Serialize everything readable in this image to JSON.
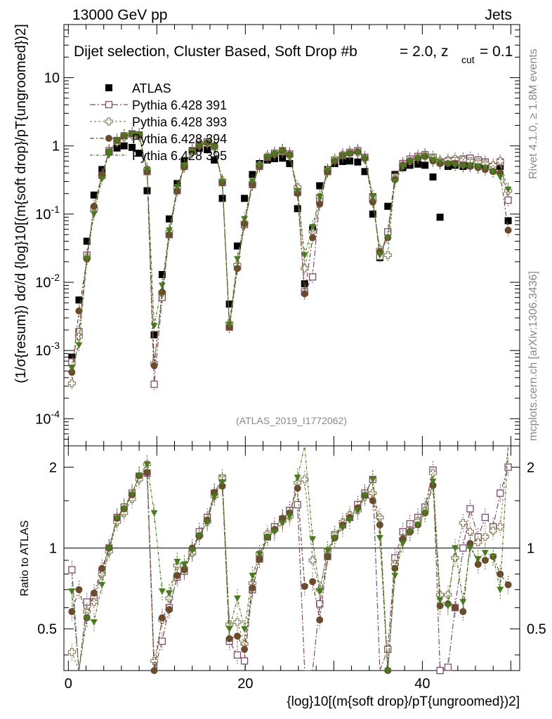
{
  "header": {
    "energy_label": "13000 GeV pp",
    "category_label": "Jets",
    "plot_title": "Dijet selection, Cluster Based, Soft Drop #b",
    "beta_label": "= 2.0, z",
    "zcut_sub": "cut",
    "zcut_value": "= 0.1",
    "analysis_id": "(ATLAS_2019_I1772062)"
  },
  "side_text": {
    "rivet": "Rivet 4.1.0, ≥ 1.8M events",
    "mcplots": "mcplots.cern.ch [arXiv:1306.3436]"
  },
  "axes": {
    "ylabel_main": "(1/σ{resum}) dσ/d {log}10[(m{soft drop}/pT{ungroomed})2]",
    "ylabel_ratio": "Ratio to ATLAS",
    "xlabel": "{log}10[(m{soft drop}/pT{ungroomed})2]",
    "x_ticks": [
      "0",
      "20",
      "40"
    ],
    "y_main_ticks": [
      "10",
      "1",
      "10^-1",
      "10^-2",
      "10^-3",
      "10^-4"
    ],
    "y_ratio_ticks": [
      "2",
      "1",
      "0.5"
    ]
  },
  "legend": [
    {
      "label": "ATLAS",
      "marker": "square-filled",
      "color": "#000000"
    },
    {
      "label": "Pythia 6.428 391",
      "marker": "square-open",
      "color": "#7b4a6b"
    },
    {
      "label": "Pythia 6.428 393",
      "marker": "cross-open",
      "color": "#8c8060"
    },
    {
      "label": "Pythia 6.428 394",
      "marker": "circle-filled",
      "color": "#6b4a2e"
    },
    {
      "label": "Pythia 6.428 395",
      "marker": "triangle-down-filled",
      "color": "#4a7a1e"
    }
  ],
  "chart_data": {
    "type": "scatter",
    "xlim": [
      -0.5,
      51
    ],
    "ylim_main": [
      4e-05,
      60
    ],
    "ylim_ratio": [
      0.35,
      2.4
    ],
    "main_y_scale": "log",
    "ratio_y_scale": "log",
    "x": [
      0.4,
      1.2,
      2.1,
      2.9,
      3.8,
      4.6,
      5.5,
      6.3,
      7.2,
      8.0,
      8.9,
      9.7,
      10.6,
      11.4,
      12.3,
      13.1,
      14.0,
      14.8,
      15.7,
      16.5,
      17.4,
      18.2,
      19.1,
      19.9,
      20.8,
      21.6,
      22.5,
      23.3,
      24.2,
      25.0,
      25.9,
      26.7,
      27.6,
      28.4,
      29.3,
      30.1,
      31.0,
      31.8,
      32.7,
      33.5,
      34.4,
      35.2,
      36.1,
      36.9,
      37.8,
      38.6,
      39.5,
      40.3,
      41.2,
      42.0,
      42.9,
      43.7,
      44.6,
      45.4,
      46.3,
      47.1,
      48.0,
      48.8,
      49.7
    ],
    "series": [
      {
        "name": "ATLAS",
        "values": [
          0.0008,
          0.0055,
          0.04,
          0.19,
          0.45,
          0.82,
          0.93,
          1.0,
          0.95,
          0.78,
          0.22,
          0.0017,
          0.013,
          0.085,
          0.28,
          0.6,
          0.85,
          0.92,
          0.88,
          0.62,
          0.17,
          0.0048,
          0.034,
          0.17,
          0.38,
          0.55,
          0.62,
          0.65,
          0.66,
          0.55,
          0.12,
          0.0095,
          0.06,
          0.26,
          0.45,
          0.55,
          0.59,
          0.6,
          0.58,
          0.42,
          0.1,
          0.023,
          0.13,
          0.38,
          0.48,
          0.52,
          0.54,
          0.52,
          0.35,
          0.09,
          0.5,
          0.52,
          0.5,
          0.52,
          0.55,
          0.5,
          0.45,
          0.5,
          0.08
        ]
      },
      {
        "name": "Pythia 6.428 391",
        "values": [
          0.00068,
          0.0019,
          0.025,
          0.12,
          0.37,
          0.85,
          1.2,
          1.4,
          1.5,
          1.45,
          0.42,
          0.00032,
          0.006,
          0.05,
          0.22,
          0.5,
          0.83,
          1.05,
          1.15,
          0.98,
          0.29,
          0.0022,
          0.017,
          0.07,
          0.27,
          0.5,
          0.68,
          0.78,
          0.85,
          0.76,
          0.21,
          0.0072,
          0.012,
          0.16,
          0.42,
          0.62,
          0.72,
          0.8,
          0.85,
          0.68,
          0.18,
          0.024,
          0.055,
          0.35,
          0.55,
          0.64,
          0.7,
          0.74,
          0.68,
          0.58,
          0.6,
          0.62,
          0.64,
          0.66,
          0.62,
          0.58,
          0.5,
          0.58,
          0.16
        ]
      },
      {
        "name": "Pythia 6.428 393",
        "values": [
          0.00033,
          0.0016,
          0.023,
          0.12,
          0.36,
          0.8,
          1.15,
          1.35,
          1.45,
          1.4,
          0.45,
          0.00065,
          0.007,
          0.055,
          0.24,
          0.5,
          0.82,
          1.02,
          1.1,
          0.97,
          0.31,
          0.0025,
          0.018,
          0.075,
          0.28,
          0.52,
          0.7,
          0.76,
          0.83,
          0.72,
          0.25,
          0.016,
          0.055,
          0.18,
          0.44,
          0.62,
          0.74,
          0.8,
          0.8,
          0.65,
          0.16,
          0.03,
          0.025,
          0.33,
          0.52,
          0.6,
          0.68,
          0.72,
          0.66,
          0.6,
          0.62,
          0.64,
          0.62,
          0.6,
          0.58,
          0.55,
          0.52,
          0.6,
          0.22
        ]
      },
      {
        "name": "Pythia 6.428 394",
        "values": [
          0.00048,
          0.0038,
          0.022,
          0.13,
          0.38,
          0.82,
          1.2,
          1.4,
          1.5,
          1.45,
          0.42,
          0.0006,
          0.0072,
          0.05,
          0.22,
          0.5,
          0.85,
          1.02,
          1.12,
          1.0,
          0.29,
          0.0022,
          0.016,
          0.072,
          0.27,
          0.5,
          0.68,
          0.76,
          0.85,
          0.74,
          0.2,
          0.0068,
          0.045,
          0.14,
          0.42,
          0.6,
          0.72,
          0.78,
          0.82,
          0.66,
          0.15,
          0.028,
          0.045,
          0.32,
          0.52,
          0.6,
          0.66,
          0.7,
          0.6,
          0.55,
          0.55,
          0.55,
          0.52,
          0.5,
          0.48,
          0.45,
          0.42,
          0.4,
          0.058
        ]
      },
      {
        "name": "Pythia 6.428 395",
        "values": [
          0.00055,
          0.0012,
          0.022,
          0.1,
          0.33,
          0.82,
          1.2,
          1.4,
          1.5,
          1.45,
          0.45,
          0.0023,
          0.009,
          0.058,
          0.25,
          0.52,
          0.83,
          1.02,
          1.1,
          0.96,
          0.3,
          0.0024,
          0.022,
          0.085,
          0.3,
          0.52,
          0.68,
          0.75,
          0.82,
          0.72,
          0.22,
          0.025,
          0.065,
          0.18,
          0.44,
          0.6,
          0.7,
          0.76,
          0.8,
          0.66,
          0.18,
          0.025,
          0.045,
          0.3,
          0.5,
          0.6,
          0.66,
          0.7,
          0.62,
          0.58,
          0.55,
          0.52,
          0.5,
          0.52,
          0.5,
          0.48,
          0.42,
          0.35,
          0.23
        ]
      }
    ],
    "ratios": [
      {
        "name": "Pythia 6.428 391",
        "values": [
          0.83,
          0.32,
          0.63,
          0.65,
          0.82,
          1.0,
          1.3,
          1.42,
          1.6,
          1.85,
          1.9,
          0.18,
          0.45,
          0.6,
          0.78,
          0.82,
          0.97,
          1.15,
          1.3,
          1.6,
          1.82,
          0.45,
          0.4,
          0.38,
          0.7,
          0.91,
          1.1,
          1.2,
          1.28,
          1.38,
          1.45,
          0.12,
          0.2,
          0.62,
          0.93,
          1.12,
          1.22,
          1.3,
          1.45,
          1.6,
          1.8,
          0.25,
          0.42,
          0.92,
          1.15,
          1.23,
          1.3,
          1.42,
          1.95,
          0.35,
          0.36,
          0.6,
          1.0,
          1.4,
          1.1,
          1.3,
          1.2,
          1.6,
          2.0
        ]
      },
      {
        "name": "Pythia 6.428 393",
        "values": [
          0.41,
          0.3,
          0.58,
          0.63,
          0.8,
          0.97,
          1.25,
          1.35,
          1.52,
          1.8,
          2.05,
          0.38,
          0.54,
          0.65,
          0.86,
          0.84,
          0.96,
          1.11,
          1.25,
          1.56,
          1.82,
          0.52,
          0.53,
          0.44,
          0.74,
          0.95,
          1.13,
          1.17,
          1.26,
          1.31,
          1.75,
          1.8,
          0.9,
          0.7,
          0.98,
          1.12,
          1.25,
          1.33,
          1.38,
          1.55,
          1.6,
          1.3,
          0.2,
          0.87,
          1.08,
          1.15,
          1.26,
          1.38,
          1.9,
          0.67,
          0.67,
          0.92,
          1.24,
          1.15,
          1.05,
          1.1,
          1.16,
          1.2,
          2.75
        ]
      },
      {
        "name": "Pythia 6.428 394",
        "values": [
          0.58,
          0.7,
          0.55,
          0.68,
          0.84,
          1.0,
          1.29,
          1.4,
          1.58,
          1.86,
          1.91,
          0.35,
          0.55,
          0.59,
          0.79,
          0.83,
          1.0,
          1.11,
          1.27,
          1.61,
          1.7,
          0.46,
          0.47,
          0.42,
          0.71,
          0.91,
          1.1,
          1.17,
          1.29,
          1.35,
          1.67,
          0.72,
          0.75,
          0.54,
          0.93,
          1.09,
          1.22,
          1.3,
          1.41,
          1.57,
          1.5,
          1.22,
          0.35,
          0.84,
          1.08,
          1.15,
          1.22,
          1.35,
          1.71,
          0.61,
          0.62,
          0.6,
          0.58,
          1.04,
          0.87,
          0.9,
          0.93,
          0.8,
          0.73
        ]
      },
      {
        "name": "Pythia 6.428 395",
        "values": [
          0.69,
          0.22,
          0.55,
          0.53,
          0.73,
          0.99,
          1.29,
          1.4,
          1.58,
          1.86,
          2.05,
          1.35,
          0.69,
          0.68,
          0.89,
          0.87,
          0.98,
          1.11,
          1.25,
          1.55,
          1.76,
          0.5,
          0.65,
          0.5,
          0.79,
          0.95,
          1.1,
          1.15,
          1.24,
          1.31,
          1.83,
          2.63,
          1.08,
          0.69,
          0.98,
          1.09,
          1.19,
          1.27,
          1.38,
          1.57,
          1.8,
          1.09,
          0.35,
          0.79,
          1.04,
          1.15,
          1.22,
          1.35,
          1.77,
          0.64,
          0.61,
          1.0,
          0.63,
          1.0,
          0.91,
          0.96,
          0.93,
          0.7,
          2.88
        ]
      }
    ],
    "title": "Dijet selection, Cluster Based, Soft Drop #b = 2.0, z_cut = 0.1",
    "xlabel": "{log}10[(m{soft drop}/pT{ungroomed})2]",
    "ylabel": "(1/σ{resum}) dσ/d {log}10[(m{soft drop}/pT{ungroomed})2]",
    "legend_position": "top-left"
  }
}
